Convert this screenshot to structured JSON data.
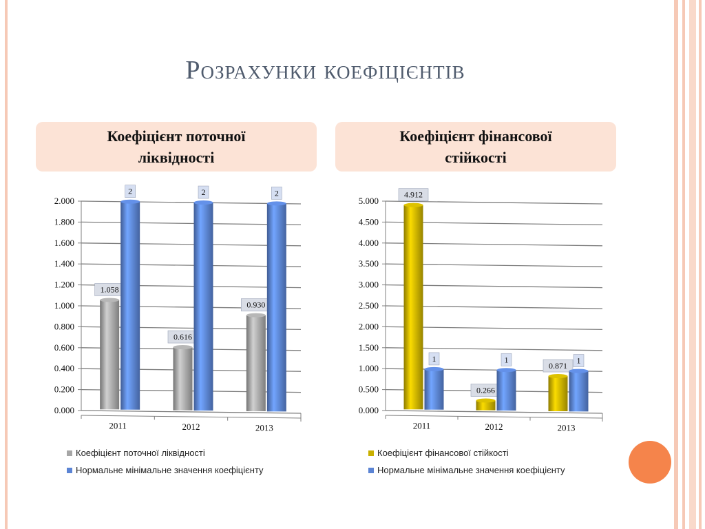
{
  "slide": {
    "title": "Розрахунки коефіцієнтів",
    "colors": {
      "accent": "#f5844b",
      "frame": "#f6c9b6",
      "box_bg": "#fce3d6",
      "title": "#4f5b6d"
    }
  },
  "chart_data": [
    {
      "type": "bar",
      "title_line1": "Коефіцієнт поточної",
      "title_line2": "ліквідності",
      "categories": [
        "2011",
        "2012",
        "2013"
      ],
      "ylim": [
        0,
        2
      ],
      "ytick_labels": [
        "0.000",
        "0.200",
        "0.400",
        "0.600",
        "0.800",
        "1.000",
        "1.200",
        "1.400",
        "1.600",
        "1.800",
        "2.000"
      ],
      "series": [
        {
          "name": "Коефіцієнт поточної ліквідності",
          "values": [
            1.058,
            0.616,
            0.93
          ],
          "labels": [
            "1.058",
            "0.616",
            "0.930"
          ],
          "color": "#a6a6a6"
        },
        {
          "name": "Нормальне мінімальне значення коефіцієнту",
          "values": [
            2,
            2,
            2
          ],
          "labels": [
            "2",
            "2",
            "2"
          ],
          "color": "#5b84d4"
        }
      ],
      "grid": true,
      "legend": "bottom"
    },
    {
      "type": "bar",
      "title_line1": "Коефіцієнт фінансової",
      "title_line2": "стійкості",
      "categories": [
        "2011",
        "2012",
        "2013"
      ],
      "ylim": [
        0,
        5
      ],
      "ytick_labels": [
        "0.000",
        "0.500",
        "1.000",
        "1.500",
        "2.000",
        "2.500",
        "3.000",
        "3.500",
        "4.000",
        "4.500",
        "5.000"
      ],
      "series": [
        {
          "name": "Коефіцієнт фінансової стійкості",
          "values": [
            4.912,
            0.266,
            0.871
          ],
          "labels": [
            "4.912",
            "0.266",
            "0.871"
          ],
          "color": "#c9b000"
        },
        {
          "name": "Нормальне мінімальне значення коефіцієнту",
          "values": [
            1,
            1,
            1
          ],
          "labels": [
            "1",
            "1",
            "1"
          ],
          "color": "#5b84d4"
        }
      ],
      "grid": true,
      "legend": "bottom"
    }
  ]
}
